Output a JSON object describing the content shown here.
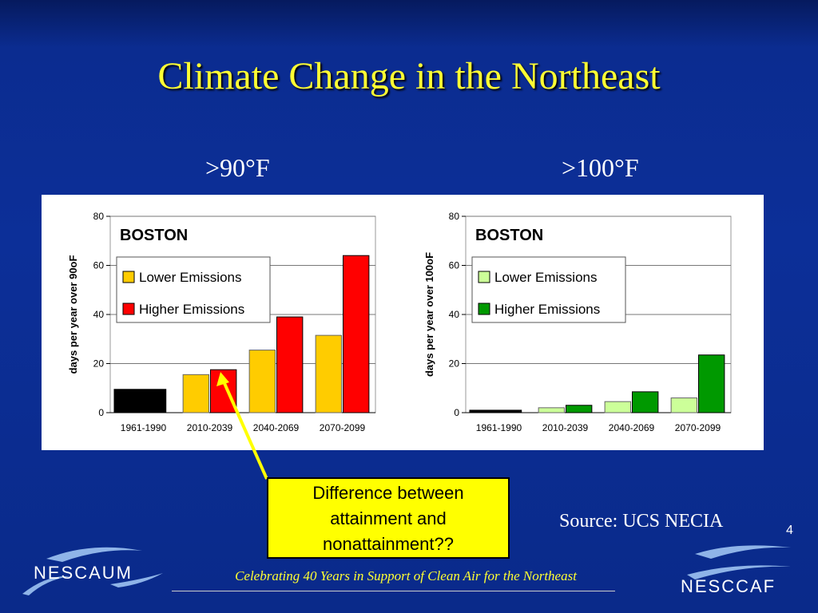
{
  "slide": {
    "title": "Climate Change in the Northeast",
    "left_heading": ">90°F",
    "right_heading": ">100°F",
    "callout": [
      "Difference between",
      "attainment and",
      "nonattainment??"
    ],
    "source": "Source: UCS NECIA",
    "page_number": "4",
    "footer": "Celebrating 40 Years in Support of Clean Air for the Northeast",
    "logos": [
      {
        "name": "NESCAUM",
        "icon": "wave-swoosh-logo"
      },
      {
        "name": "NESCCAF",
        "icon": "wave-swoosh-logo"
      }
    ]
  },
  "colors": {
    "background": "#0b2c90",
    "title": "#ffff33",
    "callout_bg": "#ffff00",
    "baseline_bar": "#000000",
    "lower_90": "#ffcc00",
    "higher_90": "#ff0000",
    "lower_100": "#ccff99",
    "higher_100": "#009900",
    "grid": "#888888"
  },
  "chart_data": [
    {
      "type": "bar",
      "title": "BOSTON",
      "ylabel": "days per year over 90oF",
      "ylim": [
        0,
        80
      ],
      "yticks": [
        "0",
        "20",
        "40",
        "60",
        "80"
      ],
      "categories": [
        "1961-1990",
        "2010-2039",
        "2040-2069",
        "2070-2099"
      ],
      "baseline": {
        "category": "1961-1990",
        "value": 9.5
      },
      "series": [
        {
          "name": "Lower Emissions",
          "values": [
            null,
            15.5,
            25.5,
            31.5
          ]
        },
        {
          "name": "Higher Emissions",
          "values": [
            null,
            17.5,
            39,
            64
          ]
        }
      ],
      "legend": "upper-left",
      "grid": true
    },
    {
      "type": "bar",
      "title": "BOSTON",
      "ylabel": "days per year over 100oF",
      "ylim": [
        0,
        80
      ],
      "yticks": [
        "0",
        "20",
        "40",
        "60",
        "80"
      ],
      "categories": [
        "1961-1990",
        "2010-2039",
        "2040-2069",
        "2070-2099"
      ],
      "baseline": {
        "category": "1961-1990",
        "value": 1
      },
      "series": [
        {
          "name": "Lower Emissions",
          "values": [
            null,
            2,
            4.5,
            6
          ]
        },
        {
          "name": "Higher Emissions",
          "values": [
            null,
            3,
            8.5,
            23.5
          ]
        }
      ],
      "legend": "upper-left",
      "grid": true
    }
  ]
}
